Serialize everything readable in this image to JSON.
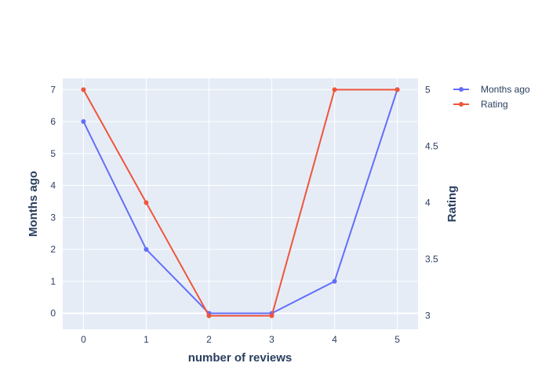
{
  "chart_data": {
    "type": "line",
    "xlabel": "number of reviews",
    "x": [
      0,
      1,
      2,
      3,
      4,
      5
    ],
    "x_ticks": [
      "0",
      "1",
      "2",
      "3",
      "4",
      "5"
    ],
    "xlim": [
      -0.33,
      5.33
    ],
    "grid": true,
    "legend_position": "top-right",
    "left_axis": {
      "label": "Months ago",
      "ylim": [
        -0.5,
        7.35
      ],
      "ticks": [
        "0",
        "1",
        "2",
        "3",
        "4",
        "5",
        "6",
        "7"
      ]
    },
    "right_axis": {
      "label": "Rating",
      "ylim": [
        2.88,
        5.1
      ],
      "ticks": [
        "3",
        "3.5",
        "4",
        "4.5",
        "5"
      ]
    },
    "series": [
      {
        "name": "Months ago",
        "axis": "left",
        "color": "#636efa",
        "values": [
          6,
          2,
          0,
          0,
          1,
          7
        ]
      },
      {
        "name": "Rating",
        "axis": "right",
        "color": "#ef553b",
        "values": [
          5,
          4,
          3,
          3,
          5,
          5
        ]
      }
    ]
  }
}
